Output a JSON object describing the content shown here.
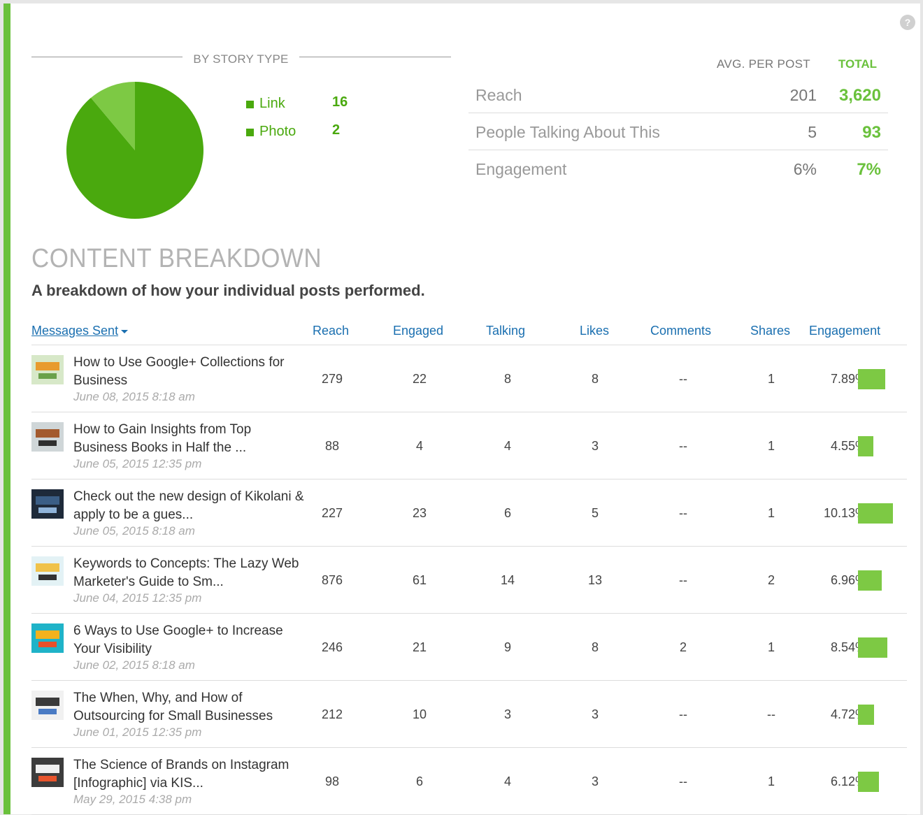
{
  "help": "?",
  "story_type": {
    "title": "BY STORY TYPE",
    "items": [
      {
        "label": "Link",
        "value": "16",
        "count": 16,
        "color": "#4aa90e"
      },
      {
        "label": "Photo",
        "value": "2",
        "count": 2,
        "color": "#7dc944"
      }
    ]
  },
  "stats": {
    "avg_label": "AVG. PER POST",
    "total_label": "TOTAL",
    "rows": [
      {
        "label": "Reach",
        "avg": "201",
        "total": "3,620"
      },
      {
        "label": "People Talking About This",
        "avg": "5",
        "total": "93"
      },
      {
        "label": "Engagement",
        "avg": "6%",
        "total": "7%"
      }
    ]
  },
  "breakdown": {
    "title": "CONTENT BREAKDOWN",
    "subtitle": "A breakdown of how your individual posts performed."
  },
  "table": {
    "columns": {
      "messages": "Messages Sent",
      "reach": "Reach",
      "engaged": "Engaged",
      "talking": "Talking",
      "likes": "Likes",
      "comments": "Comments",
      "shares": "Shares",
      "engagement": "Engagement"
    },
    "rows": [
      {
        "title": "How to Use Google+ Collections for Business",
        "date": "June 08, 2015 8:18 am",
        "reach": "279",
        "engaged": "22",
        "talking": "8",
        "likes": "8",
        "comments": "--",
        "shares": "1",
        "engagement": "7.89%",
        "engagement_pct": 7.89,
        "thumb": {
          "colors": [
            "#d7e8c8",
            "#e89b2e",
            "#6aa14a"
          ],
          "icon": "google-collections-thumb"
        }
      },
      {
        "title": "How to Gain Insights from Top Business Books in Half the ...",
        "date": "June 05, 2015 12:35 pm",
        "reach": "88",
        "engaged": "4",
        "talking": "4",
        "likes": "3",
        "comments": "--",
        "shares": "1",
        "engagement": "4.55%",
        "engagement_pct": 4.55,
        "thumb": {
          "colors": [
            "#cfd6d8",
            "#a35a2e",
            "#2f2f2f"
          ],
          "icon": "person-thumb"
        }
      },
      {
        "title": "Check out the new design of Kikolani & apply to be a gues...",
        "date": "June 05, 2015 8:18 am",
        "reach": "227",
        "engaged": "23",
        "talking": "6",
        "likes": "5",
        "comments": "--",
        "shares": "1",
        "engagement": "10.13%",
        "engagement_pct": 10.13,
        "thumb": {
          "colors": [
            "#1e2a3a",
            "#3b5e86",
            "#8fb3d9"
          ],
          "icon": "blog-thumb"
        }
      },
      {
        "title": "Keywords to Concepts: The Lazy Web Marketer's Guide to Sm...",
        "date": "June 04, 2015 12:35 pm",
        "reach": "876",
        "engaged": "61",
        "talking": "14",
        "likes": "13",
        "comments": "--",
        "shares": "2",
        "engagement": "6.96%",
        "engagement_pct": 6.96,
        "thumb": {
          "colors": [
            "#e3f2f5",
            "#f0c24a",
            "#333333"
          ],
          "icon": "lightbulb-thumb"
        }
      },
      {
        "title": "6 Ways to Use Google+ to Increase Your Visibility",
        "date": "June 02, 2015 8:18 am",
        "reach": "246",
        "engaged": "21",
        "talking": "9",
        "likes": "8",
        "comments": "2",
        "shares": "1",
        "engagement": "8.54%",
        "engagement_pct": 8.54,
        "thumb": {
          "colors": [
            "#1fb3c8",
            "#f3b21c",
            "#e9502a"
          ],
          "icon": "google-plus-thumb"
        }
      },
      {
        "title": "The When, Why, and How of Outsourcing for Small Businesses",
        "date": "June 01, 2015 12:35 pm",
        "reach": "212",
        "engaged": "10",
        "talking": "3",
        "likes": "3",
        "comments": "--",
        "shares": "--",
        "engagement": "4.72%",
        "engagement_pct": 4.72,
        "thumb": {
          "colors": [
            "#f1f1f1",
            "#3a3a3a",
            "#4a7bc4"
          ],
          "icon": "grid-thumb"
        }
      },
      {
        "title": "The Science of Brands on Instagram [Infographic] via KIS...",
        "date": "May 29, 2015 4:38 pm",
        "reach": "98",
        "engaged": "6",
        "talking": "4",
        "likes": "3",
        "comments": "--",
        "shares": "1",
        "engagement": "6.12%",
        "engagement_pct": 6.12,
        "thumb": {
          "colors": [
            "#3c3c3c",
            "#f0f0f0",
            "#e8542c"
          ],
          "icon": "analytics-thumb"
        }
      }
    ]
  }
}
